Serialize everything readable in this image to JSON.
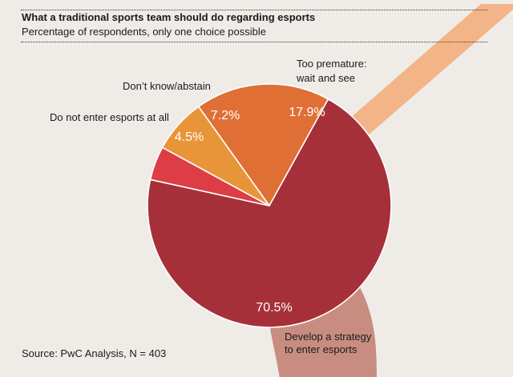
{
  "chart_data": {
    "type": "pie",
    "title": "What a traditional sports team should do regarding esports",
    "subtitle": "Percentage of respondents, only one choice possible",
    "source": "Source: PwC Analysis, N = 403",
    "slices": [
      {
        "label": "Too premature: wait and see",
        "label_lines": [
          "Too premature:",
          "wait and see"
        ],
        "value": 17.9,
        "value_label": "17.9%",
        "color": "#df6f35"
      },
      {
        "label": "Develop a strategy to enter esports",
        "label_lines": [
          "Develop a strategy",
          "to enter esports"
        ],
        "value": 70.5,
        "value_label": "70.5%",
        "color": "#a6303a"
      },
      {
        "label": "Do not enter esports at all",
        "label_lines": [
          "Do not enter esports at all"
        ],
        "value": 4.5,
        "value_label": "4.5%",
        "color": "#dd3d45"
      },
      {
        "label": "Don’t know/abstain",
        "label_lines": [
          "Don’t know/abstain"
        ],
        "value": 7.2,
        "value_label": "7.2%",
        "color": "#e8953a"
      }
    ],
    "band_colors": {
      "top": "#f3b487",
      "bottom": "#c88d80"
    }
  }
}
